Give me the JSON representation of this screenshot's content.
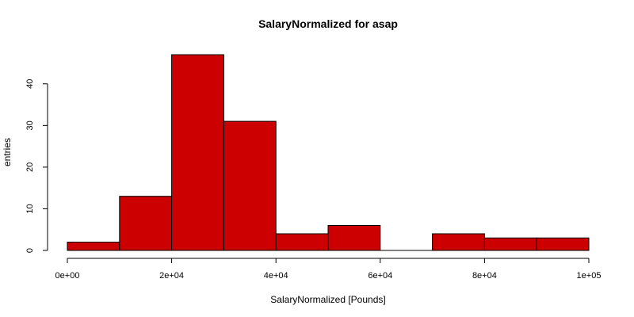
{
  "chart_data": {
    "type": "bar",
    "title": "SalaryNormalized for asap",
    "xlabel": "SalaryNormalized [Pounds]",
    "ylabel": "entries",
    "bin_edges": [
      0,
      10000,
      20000,
      30000,
      40000,
      50000,
      60000,
      70000,
      80000,
      90000,
      100000
    ],
    "values": [
      2,
      13,
      47,
      31,
      4,
      6,
      0,
      4,
      3,
      3
    ],
    "xlim": [
      0,
      100000
    ],
    "ylim": [
      0,
      47
    ],
    "x_ticks": [
      0,
      20000,
      40000,
      60000,
      80000,
      100000
    ],
    "x_tick_labels": [
      "0e+00",
      "2e+04",
      "4e+04",
      "6e+04",
      "8e+04",
      "1e+05"
    ],
    "y_ticks": [
      0,
      10,
      20,
      30,
      40
    ],
    "y_tick_labels": [
      "0",
      "10",
      "20",
      "30",
      "40"
    ],
    "bar_color": "#cc0000",
    "grid": false,
    "legend": "none"
  }
}
